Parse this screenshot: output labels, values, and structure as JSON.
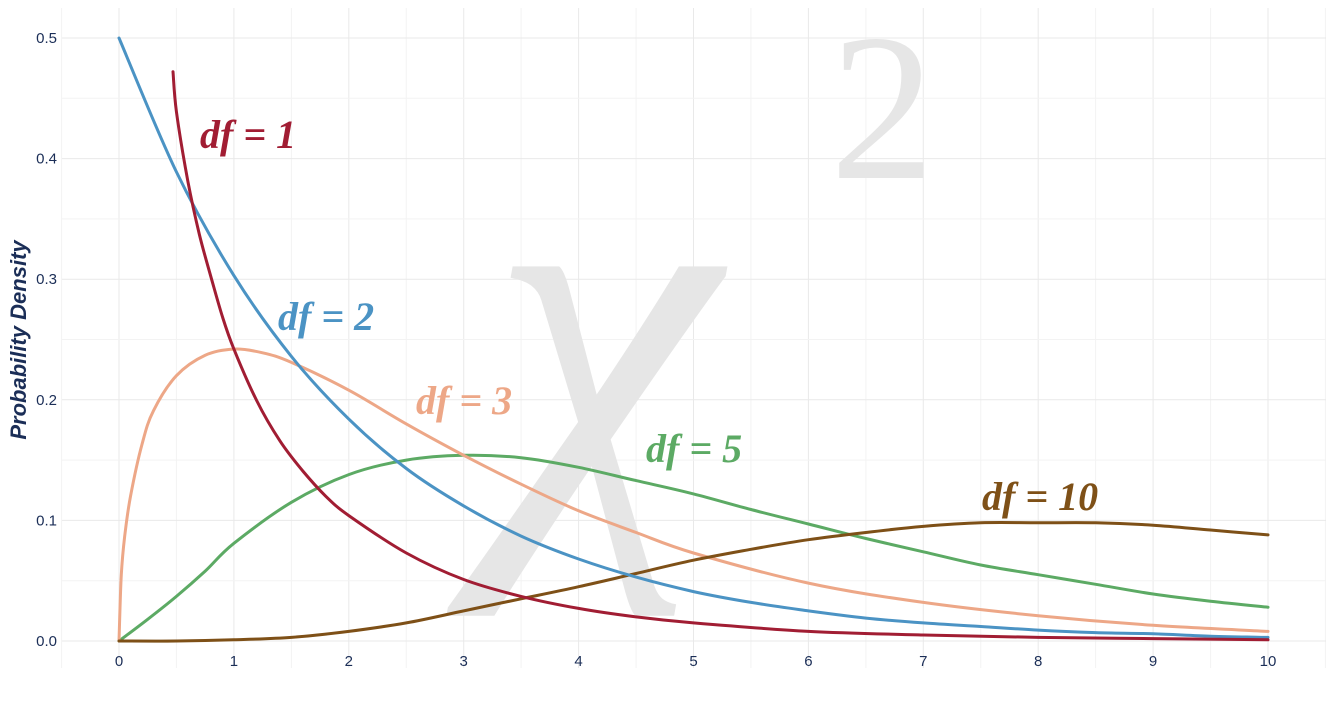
{
  "chart_data": {
    "type": "line",
    "title": "",
    "xlabel": "",
    "ylabel": "Probability Density",
    "xlim": [
      0,
      10
    ],
    "ylim": [
      0,
      0.5
    ],
    "x_ticks": [
      "0",
      "1",
      "2",
      "3",
      "4",
      "5",
      "6",
      "7",
      "8",
      "9",
      "10"
    ],
    "y_ticks": [
      "0.0",
      "0.1",
      "0.2",
      "0.3",
      "0.4",
      "0.5"
    ],
    "grid": true,
    "watermark": {
      "symbol": "χ",
      "superscript": "2"
    },
    "series": [
      {
        "name": "df = 1",
        "color": "#a11d33",
        "x": [
          0.47,
          0.5,
          0.6,
          0.7,
          0.8,
          0.9,
          1.0,
          1.2,
          1.4,
          1.6,
          1.8,
          2.0,
          2.5,
          3.0,
          3.5,
          4.0,
          4.5,
          5.0,
          6.0,
          7.0,
          8.0,
          9.0,
          10.0
        ],
        "y": [
          0.472,
          0.439,
          0.381,
          0.337,
          0.302,
          0.269,
          0.242,
          0.199,
          0.166,
          0.141,
          0.12,
          0.104,
          0.073,
          0.051,
          0.037,
          0.027,
          0.02,
          0.015,
          0.008,
          0.005,
          0.003,
          0.002,
          0.001
        ]
      },
      {
        "name": "df = 2",
        "color": "#4b93c4",
        "x": [
          0,
          0.5,
          1.0,
          1.5,
          2.0,
          2.5,
          3.0,
          3.5,
          4.0,
          4.5,
          5.0,
          5.5,
          6.0,
          6.5,
          7.0,
          7.5,
          8.0,
          8.5,
          9.0,
          9.5,
          10.0
        ],
        "y": [
          0.5,
          0.389,
          0.303,
          0.236,
          0.184,
          0.143,
          0.112,
          0.087,
          0.068,
          0.053,
          0.041,
          0.032,
          0.025,
          0.019,
          0.015,
          0.012,
          0.009,
          0.007,
          0.006,
          0.004,
          0.003
        ]
      },
      {
        "name": "df = 3",
        "color": "#eda787",
        "x": [
          0,
          0.02,
          0.05,
          0.1,
          0.2,
          0.3,
          0.5,
          0.75,
          1.0,
          1.25,
          1.5,
          2.0,
          2.5,
          3.0,
          3.5,
          4.0,
          4.5,
          5.0,
          6.0,
          7.0,
          8.0,
          9.0,
          10.0
        ],
        "y": [
          0.0,
          0.055,
          0.087,
          0.12,
          0.163,
          0.191,
          0.22,
          0.237,
          0.242,
          0.239,
          0.231,
          0.208,
          0.18,
          0.154,
          0.13,
          0.108,
          0.09,
          0.073,
          0.048,
          0.032,
          0.021,
          0.013,
          0.008
        ]
      },
      {
        "name": "df = 5",
        "color": "#5caa64",
        "x": [
          0,
          0.25,
          0.5,
          0.75,
          1.0,
          1.5,
          2.0,
          2.5,
          3.0,
          3.5,
          4.0,
          4.5,
          5.0,
          5.5,
          6.0,
          6.5,
          7.0,
          7.5,
          8.0,
          8.5,
          9.0,
          9.5,
          10.0
        ],
        "y": [
          0.0,
          0.018,
          0.037,
          0.058,
          0.081,
          0.115,
          0.138,
          0.15,
          0.154,
          0.152,
          0.144,
          0.133,
          0.122,
          0.109,
          0.097,
          0.085,
          0.074,
          0.063,
          0.055,
          0.047,
          0.039,
          0.033,
          0.028
        ]
      },
      {
        "name": "df = 10",
        "color": "#7e5017",
        "x": [
          0,
          0.5,
          1.0,
          1.5,
          2.0,
          2.5,
          3.0,
          3.5,
          4.0,
          4.5,
          5.0,
          5.5,
          6.0,
          6.5,
          7.0,
          7.5,
          8.0,
          8.5,
          9.0,
          9.5,
          10.0
        ],
        "y": [
          0.0,
          0.0,
          0.001,
          0.003,
          0.008,
          0.015,
          0.025,
          0.035,
          0.045,
          0.056,
          0.067,
          0.076,
          0.084,
          0.09,
          0.095,
          0.098,
          0.098,
          0.098,
          0.096,
          0.092,
          0.088
        ]
      }
    ]
  }
}
